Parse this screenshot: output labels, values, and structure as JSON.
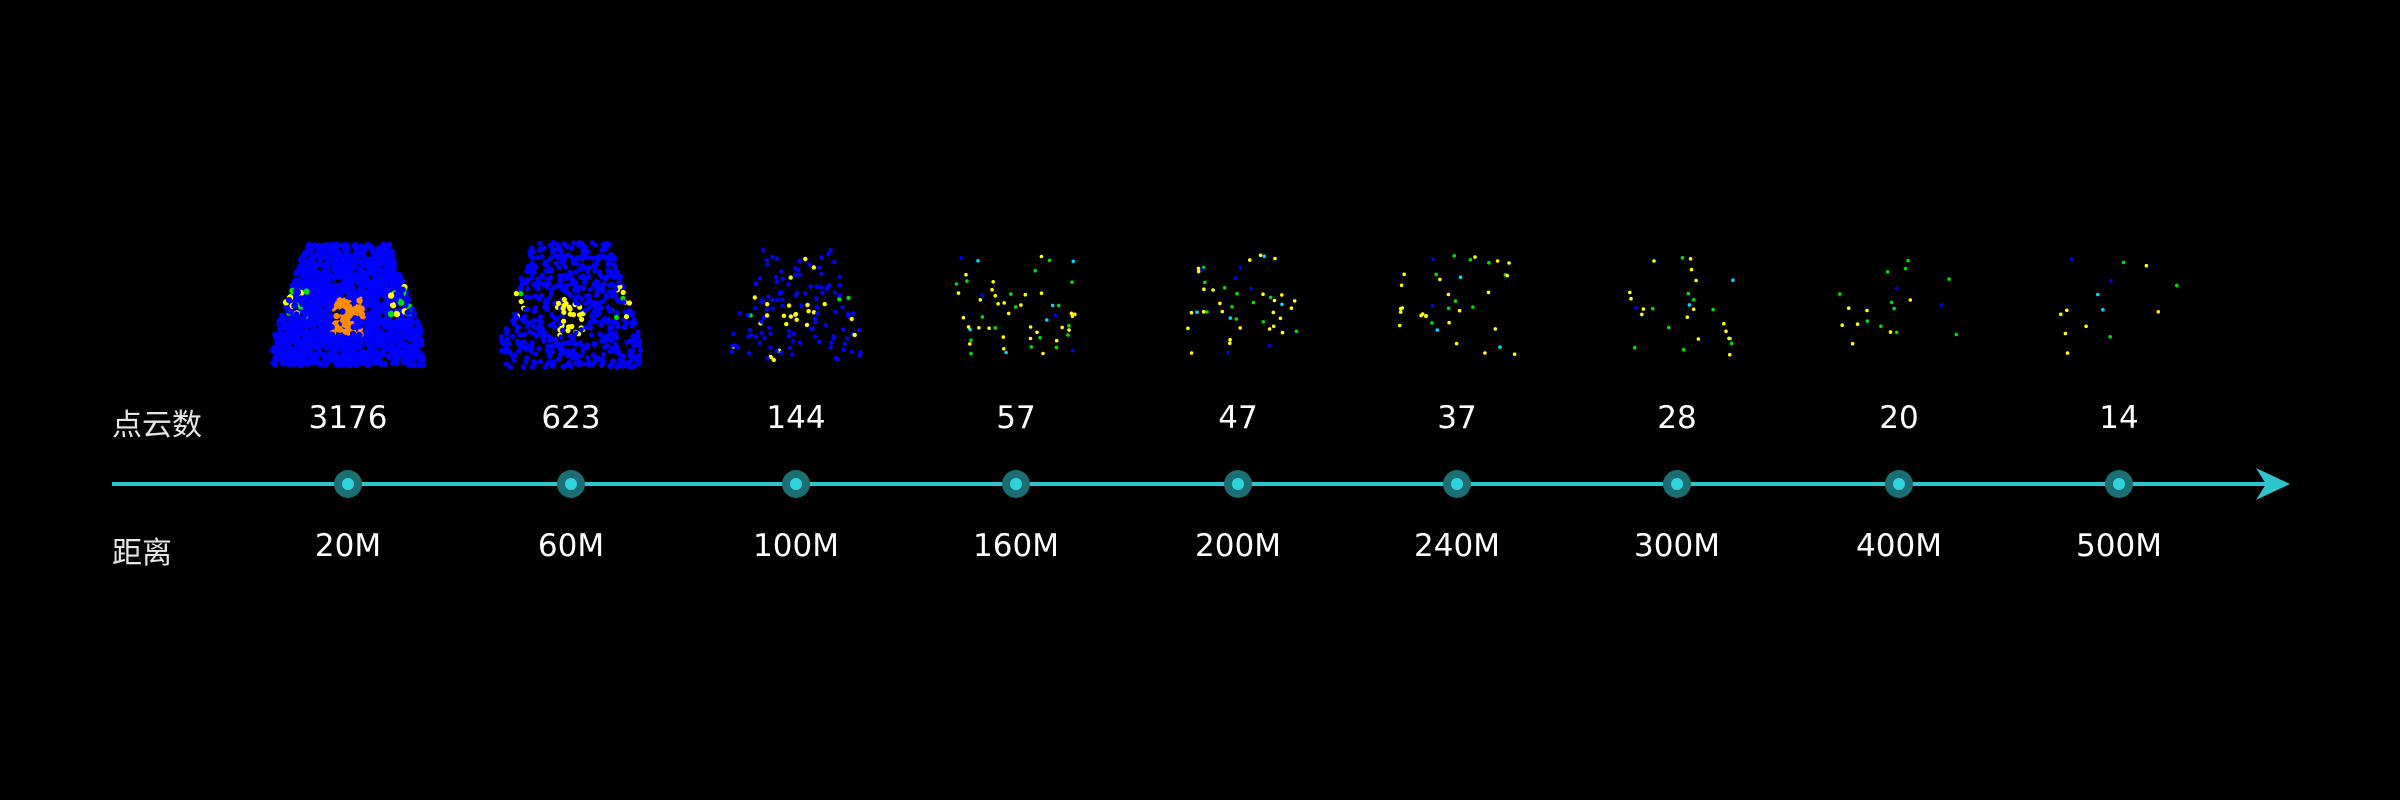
{
  "labels": {
    "count": "点云数",
    "distance": "距离"
  },
  "colors": {
    "background": "#000000",
    "axis": "#2ec5cf",
    "marker_outer": "#1b6f72",
    "marker_inner": "#2fd3dd",
    "point_dense": "#0000ff",
    "point_mid": "#00e000",
    "point_high": "#ffff00",
    "point_peak": "#ff8c00",
    "point_cyan": "#00d8ff"
  },
  "samples": [
    {
      "distance": "20M",
      "count": "3176",
      "density": 3176
    },
    {
      "distance": "60M",
      "count": "623",
      "density": 623
    },
    {
      "distance": "100M",
      "count": "144",
      "density": 144
    },
    {
      "distance": "160M",
      "count": "57",
      "density": 57
    },
    {
      "distance": "200M",
      "count": "47",
      "density": 47
    },
    {
      "distance": "240M",
      "count": "37",
      "density": 37
    },
    {
      "distance": "300M",
      "count": "28",
      "density": 28
    },
    {
      "distance": "400M",
      "count": "20",
      "density": 20
    },
    {
      "distance": "500M",
      "count": "14",
      "density": 14
    }
  ],
  "axis": {
    "arrow": "right-arrow-icon",
    "marker": "timeline-node-icon"
  }
}
